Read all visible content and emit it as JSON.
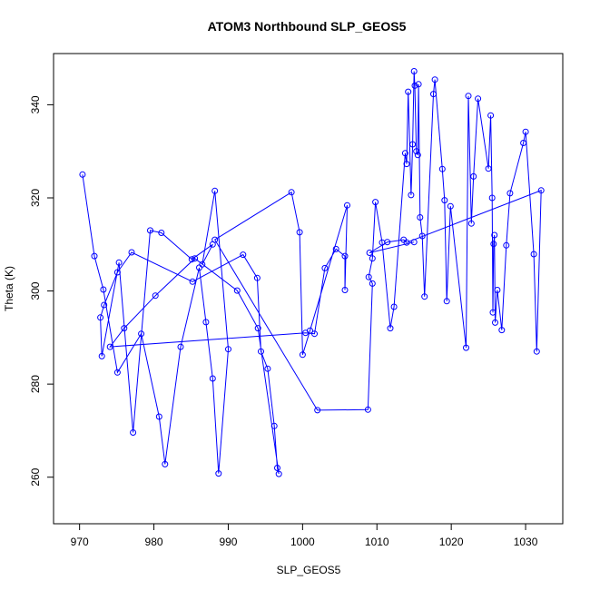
{
  "chart_data": {
    "type": "line",
    "title": "ATOM3 Northbound SLP_GEOS5",
    "xlabel": "SLP_GEOS5",
    "ylabel": "Theta (K)",
    "xlim": [
      966.5,
      1035.0
    ],
    "ylim": [
      250.0,
      351.0
    ],
    "xticks": [
      970,
      980,
      990,
      1000,
      1010,
      1020,
      1030
    ],
    "yticks": [
      260,
      280,
      300,
      320,
      340
    ],
    "grid": false,
    "color": "#0000ff",
    "marker": "open-circle",
    "series": [
      {
        "x": [
          970.4,
          972.0,
          973.2,
          975.1,
          978.3,
          980.7,
          981.5,
          983.6,
          986.1,
          987.0,
          987.9,
          988.7,
          990.0,
          988.2,
          986.5,
          987.9,
          985.1,
          981.0,
          979.5,
          977.2,
          975.3,
          973.0,
          972.8,
          973.3,
          975.1,
          977.0,
          985.2,
          992.0,
          993.9,
          994.4,
          995.3,
          996.2,
          996.6,
          996.8,
          994.0,
          991.2,
          985.5,
          980.2,
          976.0,
          974.1,
          1000.4,
          1001.6,
          1003.0,
          1004.5,
          1005.7,
          1005.7,
          1006.0,
          1001.0,
          1000.0,
          999.6,
          998.5,
          988.2,
          1002.0,
          1008.8,
          1009.4,
          1008.9,
          1009.4,
          1009.8,
          1010.7,
          1011.8,
          1012.3,
          1013.8,
          1014.0,
          1014.2,
          1014.6,
          1014.8,
          1015.0,
          1015.1,
          1015.3,
          1015.5,
          1015.6,
          1015.8,
          1016.1,
          1016.4,
          1017.6,
          1017.8,
          1018.8,
          1019.1,
          1019.4,
          1019.9,
          1022.0,
          1022.3,
          1022.7,
          1023.0,
          1023.6,
          1025.0,
          1025.3,
          1025.5,
          1025.6,
          1025.7,
          1025.8,
          1025.9,
          1026.2,
          1026.8,
          1027.4,
          1027.9,
          1029.7,
          1030.0,
          1031.1,
          1031.5,
          1032.1,
          1014.0,
          1013.6,
          1011.4,
          1009.0,
          1015.0
        ],
        "y": [
          325.0,
          307.5,
          300.3,
          282.5,
          290.8,
          273.0,
          262.8,
          288.0,
          305.0,
          293.3,
          281.2,
          260.8,
          287.5,
          321.5,
          305.7,
          310.0,
          306.8,
          312.5,
          313.0,
          269.6,
          306.1,
          286.0,
          294.3,
          297.0,
          304.0,
          308.3,
          302.0,
          307.8,
          302.8,
          287.0,
          283.3,
          271.0,
          262.0,
          260.7,
          292.0,
          300.1,
          307.0,
          299.0,
          292.0,
          288.0,
          291.0,
          290.8,
          304.9,
          309.0,
          307.5,
          300.2,
          318.4,
          291.5,
          286.3,
          312.6,
          321.2,
          311.0,
          274.4,
          274.5,
          301.6,
          303.0,
          307.0,
          319.1,
          310.4,
          292.0,
          296.6,
          329.6,
          327.3,
          342.8,
          320.6,
          331.5,
          347.2,
          344.1,
          330.0,
          329.2,
          344.4,
          315.8,
          311.8,
          298.8,
          342.3,
          345.4,
          326.2,
          319.5,
          297.8,
          318.2,
          287.8,
          341.9,
          314.5,
          324.6,
          341.3,
          326.3,
          337.7,
          320.0,
          295.4,
          310.1,
          312.0,
          293.2,
          300.2,
          291.6,
          309.8,
          321.0,
          331.8,
          334.2,
          307.9,
          287.0,
          321.6,
          310.4,
          311.0,
          310.5,
          308.2,
          310.5
        ]
      }
    ]
  }
}
